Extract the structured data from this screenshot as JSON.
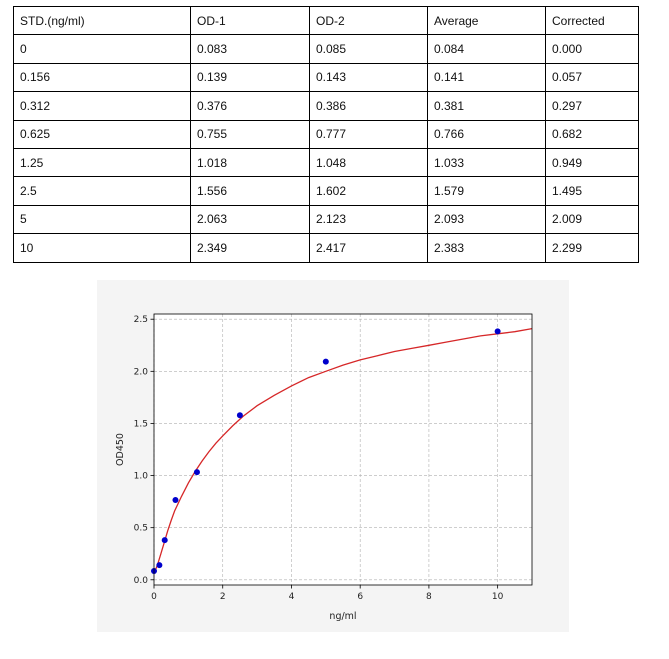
{
  "table": {
    "header": [
      "STD.(ng/ml)",
      "OD-1",
      "OD-2",
      "Average",
      "Corrected"
    ],
    "rows": [
      [
        "0",
        "0.083",
        "0.085",
        "0.084",
        "0.000"
      ],
      [
        "0.156",
        "0.139",
        "0.143",
        "0.141",
        "0.057"
      ],
      [
        "0.312",
        "0.376",
        "0.386",
        "0.381",
        "0.297"
      ],
      [
        "0.625",
        "0.755",
        "0.777",
        "0.766",
        "0.682"
      ],
      [
        "1.25",
        "1.018",
        "1.048",
        "1.033",
        "0.949"
      ],
      [
        "2.5",
        "1.556",
        "1.602",
        "1.579",
        "1.495"
      ],
      [
        "5",
        "2.063",
        "2.123",
        "2.093",
        "2.009"
      ],
      [
        "10",
        "2.349",
        "2.417",
        "2.383",
        "2.299"
      ]
    ]
  },
  "chart_data": {
    "type": "scatter",
    "title": "",
    "xlabel": "ng/ml",
    "ylabel": "OD450",
    "xlim": [
      0,
      11
    ],
    "ylim": [
      -0.05,
      2.55
    ],
    "x_ticks": [
      0,
      2,
      4,
      6,
      8,
      10
    ],
    "y_ticks": [
      0.0,
      0.5,
      1.0,
      1.5,
      2.0,
      2.5
    ],
    "x_tick_labels": [
      "0",
      "2",
      "4",
      "6",
      "8",
      "10"
    ],
    "y_tick_labels": [
      "0.0",
      "0.5",
      "1.0",
      "1.5",
      "2.0",
      "2.5"
    ],
    "grid": true,
    "series": [
      {
        "type": "scatter",
        "x": [
          0,
          0.156,
          0.312,
          0.625,
          1.25,
          2.5,
          5,
          10
        ],
        "y": [
          0.084,
          0.141,
          0.381,
          0.766,
          1.033,
          1.579,
          2.093,
          2.383
        ],
        "color": "#0000cc"
      },
      {
        "type": "line",
        "x": [
          0,
          0.1,
          0.2,
          0.3,
          0.4,
          0.5,
          0.6,
          0.8,
          1.0,
          1.2,
          1.4,
          1.6,
          1.8,
          2.0,
          2.3,
          2.6,
          3.0,
          3.5,
          4.0,
          4.5,
          5.0,
          5.5,
          6.0,
          6.5,
          7.0,
          7.5,
          8.0,
          8.5,
          9.0,
          9.5,
          10.0,
          10.5,
          11.0
        ],
        "y": [
          0.06,
          0.14,
          0.25,
          0.36,
          0.47,
          0.57,
          0.66,
          0.8,
          0.93,
          1.04,
          1.14,
          1.23,
          1.31,
          1.38,
          1.48,
          1.57,
          1.67,
          1.77,
          1.86,
          1.94,
          2.0,
          2.06,
          2.11,
          2.15,
          2.19,
          2.22,
          2.25,
          2.28,
          2.31,
          2.34,
          2.36,
          2.38,
          2.41
        ],
        "color": "#d62728"
      }
    ]
  }
}
